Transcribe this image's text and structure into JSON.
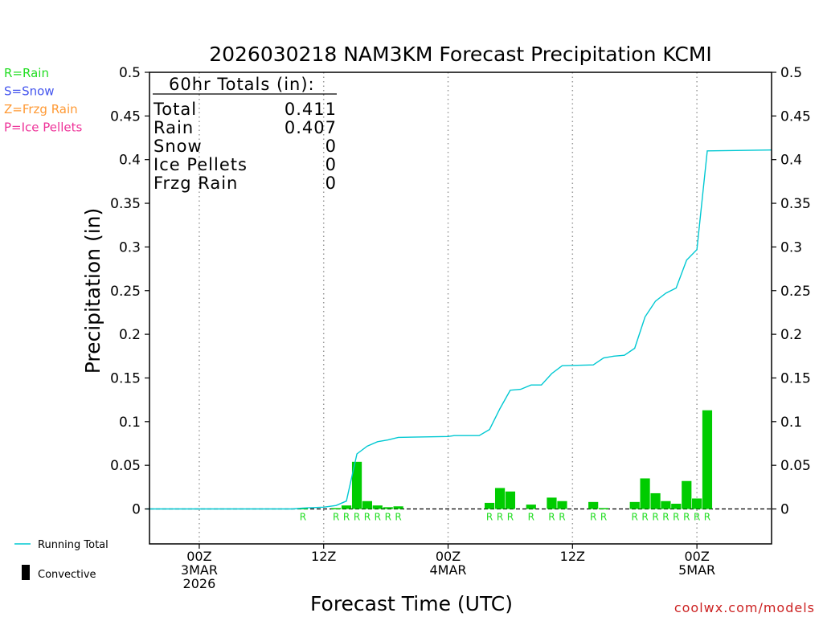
{
  "chart_data": {
    "type": "bar",
    "title": "2026030218 NAM3KM Forecast Precipitation KCMI",
    "xlabel": "Forecast Time (UTC)",
    "ylabel": "Precipitation (in)",
    "ylim": [
      -0.04,
      0.5
    ],
    "xlim_hours": [
      -4,
      46
    ],
    "yticks": [
      0,
      0.05,
      0.1,
      0.15,
      0.2,
      0.25,
      0.3,
      0.35,
      0.4,
      0.45,
      0.5
    ],
    "ytick_labels": [
      "0",
      "0.05",
      "0.1",
      "0.15",
      "0.2",
      "0.25",
      "0.3",
      "0.35",
      "0.4",
      "0.45",
      "0.5"
    ],
    "xticks": [
      {
        "hour": 0,
        "lines": [
          "00Z",
          "3MAR",
          "2026"
        ]
      },
      {
        "hour": 10,
        "lines": [
          "12Z"
        ]
      },
      {
        "hour": 20,
        "lines": [
          "00Z",
          "4MAR"
        ]
      },
      {
        "hour": 30,
        "lines": [
          "12Z"
        ]
      },
      {
        "hour": 40,
        "lines": [
          "00Z",
          "5MAR"
        ]
      }
    ],
    "precip_type_legend": [
      {
        "label": "R=Rain",
        "color": "#22dd22"
      },
      {
        "label": "S=Snow",
        "color": "#4455ee"
      },
      {
        "label": "Z=Frzg Rain",
        "color": "#ff9933"
      },
      {
        "label": "P=Ice Pellets",
        "color": "#ee3399"
      }
    ],
    "series_legend": [
      {
        "label": "Running Total",
        "color": "#00c8d2",
        "kind": "line"
      },
      {
        "label": "Convective",
        "color": "#000000",
        "kind": "bar"
      }
    ],
    "totals_box": {
      "header": "60hr Totals (in):",
      "rows": [
        {
          "name": "Total",
          "value": "0.411"
        },
        {
          "name": "Rain",
          "value": "0.407"
        },
        {
          "name": "Snow",
          "value": "0"
        },
        {
          "name": "Ice Pellets",
          "value": "0"
        },
        {
          "name": "Frzg Rain",
          "value": "0"
        }
      ]
    },
    "bars": [
      {
        "hour": 8.33,
        "value": 0.001,
        "type": "R"
      },
      {
        "hour": 11.0,
        "value": 0.001,
        "type": "R"
      },
      {
        "hour": 11.83,
        "value": 0.004,
        "type": "R"
      },
      {
        "hour": 12.67,
        "value": 0.054,
        "type": "R"
      },
      {
        "hour": 13.5,
        "value": 0.009,
        "type": "R"
      },
      {
        "hour": 14.33,
        "value": 0.004,
        "type": "R"
      },
      {
        "hour": 15.17,
        "value": 0.002,
        "type": "R"
      },
      {
        "hour": 16.0,
        "value": 0.003,
        "type": "R"
      },
      {
        "hour": 23.33,
        "value": 0.007,
        "type": "R"
      },
      {
        "hour": 24.17,
        "value": 0.024,
        "type": "R"
      },
      {
        "hour": 25.0,
        "value": 0.02,
        "type": "R"
      },
      {
        "hour": 26.67,
        "value": 0.005,
        "type": "R"
      },
      {
        "hour": 28.33,
        "value": 0.013,
        "type": "R"
      },
      {
        "hour": 29.17,
        "value": 0.009,
        "type": "R"
      },
      {
        "hour": 31.67,
        "value": 0.008,
        "type": "R"
      },
      {
        "hour": 32.5,
        "value": 0.001,
        "type": "R"
      },
      {
        "hour": 35.0,
        "value": 0.008,
        "type": "R"
      },
      {
        "hour": 35.83,
        "value": 0.035,
        "type": "R"
      },
      {
        "hour": 36.67,
        "value": 0.018,
        "type": "R"
      },
      {
        "hour": 37.5,
        "value": 0.009,
        "type": "R"
      },
      {
        "hour": 38.33,
        "value": 0.006,
        "type": "R"
      },
      {
        "hour": 39.17,
        "value": 0.032,
        "type": "R"
      },
      {
        "hour": 40.0,
        "value": 0.012,
        "type": "R"
      },
      {
        "hour": 40.83,
        "value": 0.113,
        "type": "R"
      }
    ],
    "running_total": [
      {
        "hour": -4.25,
        "value": 0
      },
      {
        "hour": 7.5,
        "value": 0.0
      },
      {
        "hour": 8.33,
        "value": 0.001
      },
      {
        "hour": 10.0,
        "value": 0.002
      },
      {
        "hour": 11.0,
        "value": 0.004
      },
      {
        "hour": 11.83,
        "value": 0.009
      },
      {
        "hour": 12.67,
        "value": 0.063
      },
      {
        "hour": 13.5,
        "value": 0.072
      },
      {
        "hour": 14.33,
        "value": 0.077
      },
      {
        "hour": 15.17,
        "value": 0.079
      },
      {
        "hour": 16.0,
        "value": 0.082
      },
      {
        "hour": 20.0,
        "value": 0.083
      },
      {
        "hour": 20.5,
        "value": 0.084
      },
      {
        "hour": 22.5,
        "value": 0.084
      },
      {
        "hour": 23.33,
        "value": 0.091
      },
      {
        "hour": 24.17,
        "value": 0.115
      },
      {
        "hour": 25.0,
        "value": 0.136
      },
      {
        "hour": 25.83,
        "value": 0.137
      },
      {
        "hour": 26.67,
        "value": 0.142
      },
      {
        "hour": 27.5,
        "value": 0.142
      },
      {
        "hour": 28.33,
        "value": 0.155
      },
      {
        "hour": 29.17,
        "value": 0.164
      },
      {
        "hour": 31.67,
        "value": 0.165
      },
      {
        "hour": 32.5,
        "value": 0.173
      },
      {
        "hour": 33.33,
        "value": 0.175
      },
      {
        "hour": 34.17,
        "value": 0.176
      },
      {
        "hour": 35.0,
        "value": 0.184
      },
      {
        "hour": 35.83,
        "value": 0.22
      },
      {
        "hour": 36.67,
        "value": 0.238
      },
      {
        "hour": 37.5,
        "value": 0.247
      },
      {
        "hour": 38.33,
        "value": 0.253
      },
      {
        "hour": 39.17,
        "value": 0.285
      },
      {
        "hour": 40.0,
        "value": 0.297
      },
      {
        "hour": 40.83,
        "value": 0.41
      },
      {
        "hour": 46.0,
        "value": 0.411
      }
    ],
    "colors": {
      "rain": "#00cc00",
      "rain_label": "#22dd22",
      "running_total": "#00c8d2",
      "axis": "#000000",
      "grid": "#999999"
    }
  },
  "watermark": "coolwx.com/models"
}
